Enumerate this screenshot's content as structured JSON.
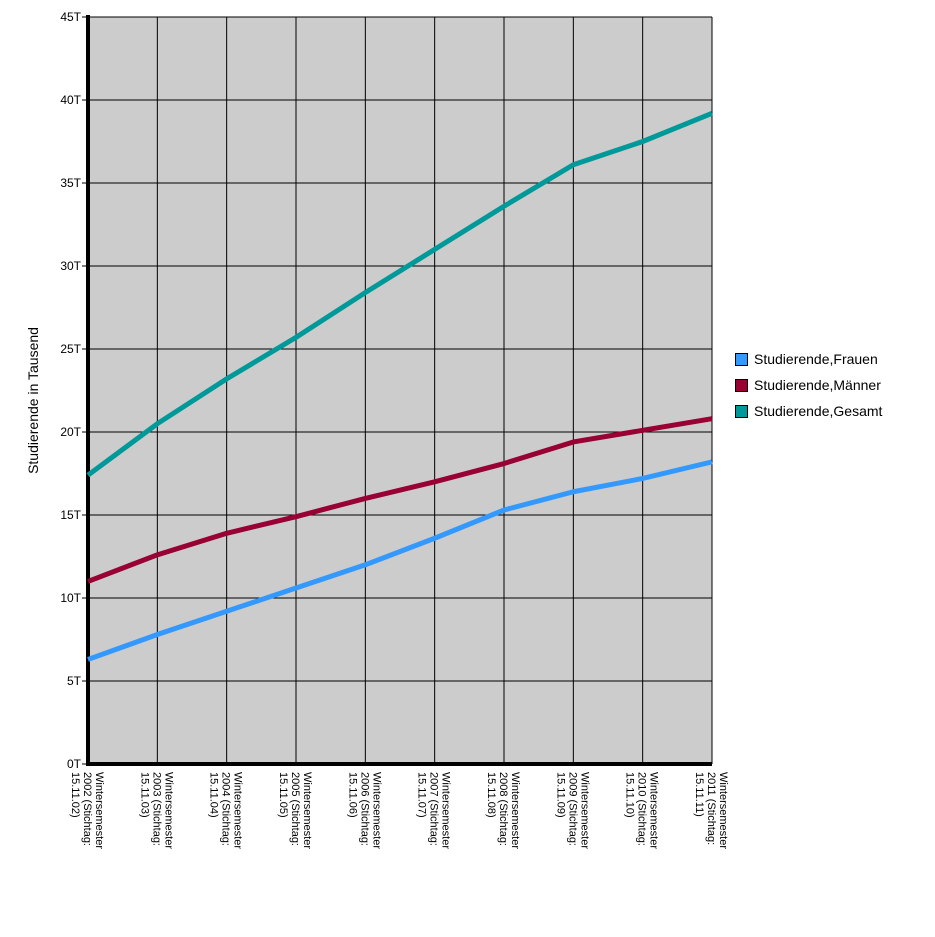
{
  "chart_data": {
    "type": "line",
    "title": "",
    "xlabel": "",
    "ylabel": "Studierende in Tausend",
    "ylim": [
      0,
      45000
    ],
    "yticks": [
      "0T",
      "5T",
      "10T",
      "15T",
      "20T",
      "25T",
      "30T",
      "35T",
      "40T",
      "45T"
    ],
    "categories": [
      "Wintersemester 2002 (Stichtag: 15.11.02)",
      "Wintersemester 2003 (Stichtag: 15.11.03)",
      "Wintersemester 2004 (Stichtag: 15.11.04)",
      "Wintersemester 2005 (Stichtag: 15.11.05)",
      "Wintersemester 2006 (Stichtag: 15.11.06)",
      "Wintersemester 2007 (Stichtag: 15.11.07)",
      "Wintersemester 2008 (Stichtag: 15.11.08)",
      "Wintersemester 2009 (Stichtag: 15.11.09)",
      "Wintersemester 2010 (Stichtag: 15.11.10)",
      "Wintersemester 2011 (Stichtag: 15.11.11)"
    ],
    "category_lines": [
      [
        "Wintersemester",
        "2002 (Stichtag:",
        "15.11.02)"
      ],
      [
        "Wintersemester",
        "2003 (Stichtag:",
        "15.11.03)"
      ],
      [
        "Wintersemester",
        "2004 (Stichtag:",
        "15.11.04)"
      ],
      [
        "Wintersemester",
        "2005 (Stichtag:",
        "15.11.05)"
      ],
      [
        "Wintersemester",
        "2006 (Stichtag:",
        "15.11.06)"
      ],
      [
        "Wintersemester",
        "2007 (Stichtag:",
        "15.11.07)"
      ],
      [
        "Wintersemester",
        "2008 (Stichtag:",
        "15.11.08)"
      ],
      [
        "Wintersemester",
        "2009 (Stichtag:",
        "15.11.09)"
      ],
      [
        "Wintersemester",
        "2010 (Stichtag:",
        "15.11.10)"
      ],
      [
        "Wintersemester",
        "2011 (Stichtag:",
        "15.11.11)"
      ]
    ],
    "series": [
      {
        "name": "Studierende,Frauen",
        "color": "#3399ff",
        "values": [
          6300,
          7800,
          9200,
          10600,
          12000,
          13600,
          15300,
          16400,
          17200,
          18200
        ]
      },
      {
        "name": "Studierende,Männer",
        "color": "#990033",
        "values": [
          11000,
          12600,
          13900,
          14900,
          16000,
          17000,
          18100,
          19400,
          20100,
          20800
        ]
      },
      {
        "name": "Studierende,Gesamt",
        "color": "#009999",
        "values": [
          17400,
          20500,
          23200,
          25700,
          28400,
          31000,
          33600,
          36100,
          37500,
          39200
        ]
      }
    ],
    "grid": true,
    "legend_position": "right"
  }
}
